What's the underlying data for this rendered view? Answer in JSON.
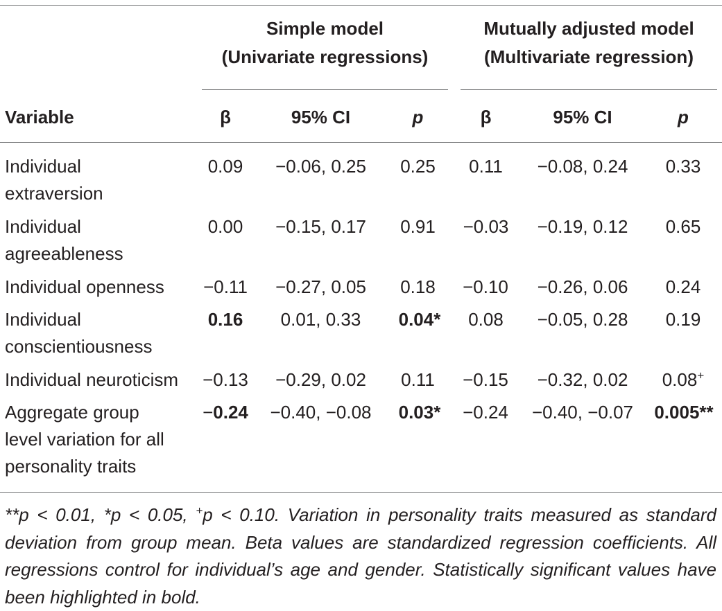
{
  "table": {
    "group_headers": {
      "simple": {
        "line1": "Simple model",
        "line2": "(Univariate regressions)"
      },
      "adjusted": {
        "line1": "Mutually adjusted model",
        "line2": "(Multivariate regression)"
      }
    },
    "columns": {
      "variable": "Variable",
      "beta1": "β",
      "ci1": "95% CI",
      "p1": "p",
      "beta2": "β",
      "ci2": "95% CI",
      "p2": "p"
    },
    "rows": [
      {
        "variable": [
          "Individual",
          "extraversion"
        ],
        "beta1": "0.09",
        "ci1": "−0.06, 0.25",
        "p1": "0.25",
        "beta2": "0.11",
        "ci2": "−0.08, 0.24",
        "p2": "0.33"
      },
      {
        "variable": [
          "Individual",
          "agreeableness"
        ],
        "beta1": "0.00",
        "ci1": "−0.15, 0.17",
        "p1": "0.91",
        "beta2": "−0.03",
        "ci2": "−0.19, 0.12",
        "p2": "0.65"
      },
      {
        "variable": [
          "Individual openness"
        ],
        "beta1": "−0.11",
        "ci1": "−0.27, 0.05",
        "p1": "0.18",
        "beta2": "−0.10",
        "ci2": "−0.26, 0.06",
        "p2": "0.24"
      },
      {
        "variable": [
          "Individual",
          "conscientiousness"
        ],
        "beta1": "0.16",
        "ci1": "0.01, 0.33",
        "p1": "0.04*",
        "beta2": "0.08",
        "ci2": "−0.05, 0.28",
        "p2": "0.19"
      },
      {
        "variable": [
          "Individual neuroticism"
        ],
        "beta1": "−0.13",
        "ci1": "−0.29, 0.02",
        "p1": "0.11",
        "beta2": "−0.15",
        "ci2": "−0.32, 0.02",
        "p2_value": "0.08",
        "p2_mark": "+"
      },
      {
        "variable": [
          "Aggregate group",
          "level variation for all",
          "personality traits"
        ],
        "beta1_sign": "−",
        "beta1_value": "0.24",
        "ci1": "−0.40, −0.08",
        "p1": "0.03*",
        "beta2": "−0.24",
        "ci2": "−0.40, −0.07",
        "p2": "0.005**"
      }
    ]
  },
  "footnote": {
    "part1": "**p < 0.01, *p < 0.05, ",
    "plus_mark": "+",
    "part2": "p < 0.10. Variation in personality traits measured as standard deviation from group mean. Beta values are standardized regression coefficients. All regressions control for individual’s age and gender. Statistically significant values have been highlighted in bold."
  }
}
